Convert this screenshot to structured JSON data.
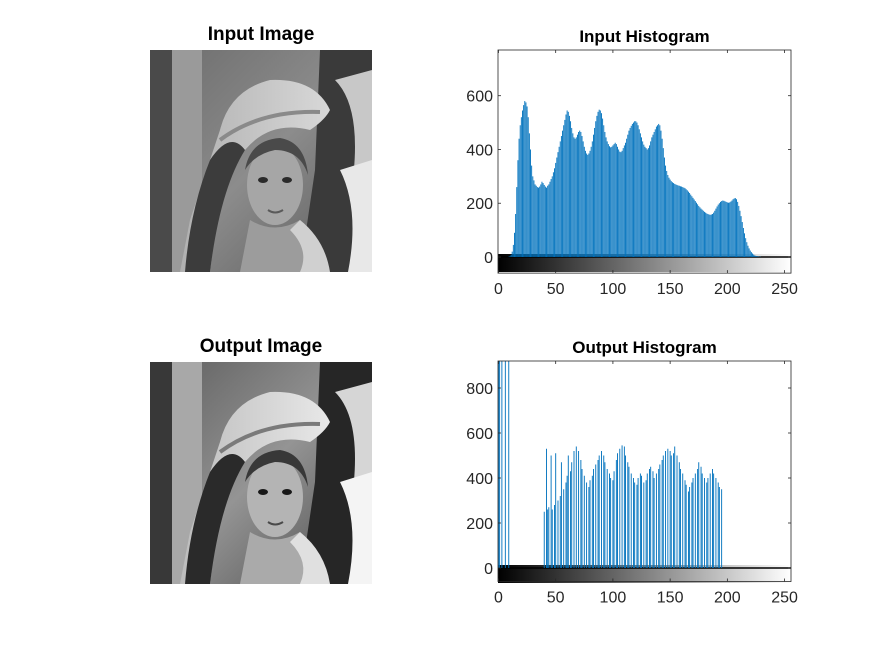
{
  "panels": {
    "input_image_title": "Input Image",
    "output_image_title": "Output Image"
  },
  "chart_data": [
    {
      "type": "bar",
      "title": "Input Histogram",
      "xlabel": "",
      "ylabel": "",
      "xlim": [
        0,
        255
      ],
      "ylim": [
        -60,
        770
      ],
      "xticks": [
        0,
        50,
        100,
        150,
        200,
        250
      ],
      "yticks": [
        0,
        200,
        400,
        600
      ],
      "colorbar": "gray",
      "bar_color": "#0072BD",
      "bins": 256,
      "values": [
        0,
        0,
        0,
        0,
        0,
        0,
        0,
        0,
        0,
        1,
        3,
        8,
        20,
        45,
        90,
        160,
        260,
        360,
        440,
        490,
        520,
        545,
        565,
        580,
        575,
        560,
        520,
        460,
        400,
        340,
        300,
        285,
        270,
        265,
        260,
        258,
        262,
        270,
        280,
        275,
        268,
        262,
        258,
        265,
        270,
        280,
        290,
        300,
        315,
        330,
        350,
        370,
        390,
        410,
        430,
        450,
        470,
        490,
        510,
        530,
        545,
        540,
        525,
        505,
        480,
        460,
        445,
        440,
        445,
        455,
        465,
        470,
        465,
        450,
        430,
        410,
        395,
        385,
        380,
        385,
        395,
        410,
        430,
        455,
        480,
        505,
        525,
        540,
        548,
        545,
        535,
        515,
        490,
        465,
        445,
        430,
        420,
        412,
        408,
        410,
        415,
        420,
        425,
        420,
        410,
        400,
        392,
        390,
        395,
        405,
        415,
        425,
        440,
        455,
        470,
        480,
        488,
        495,
        500,
        505,
        505,
        500,
        490,
        475,
        460,
        445,
        430,
        418,
        410,
        405,
        400,
        405,
        415,
        430,
        445,
        455,
        465,
        475,
        485,
        490,
        495,
        490,
        470,
        440,
        405,
        370,
        340,
        320,
        305,
        295,
        288,
        282,
        278,
        275,
        272,
        270,
        268,
        266,
        265,
        263,
        262,
        260,
        258,
        256,
        252,
        248,
        243,
        238,
        232,
        226,
        220,
        214,
        208,
        202,
        196,
        190,
        185,
        180,
        176,
        172,
        168,
        165,
        162,
        160,
        158,
        157,
        158,
        160,
        165,
        172,
        180,
        188,
        195,
        200,
        205,
        208,
        210,
        209,
        207,
        205,
        203,
        202,
        203,
        206,
        210,
        215,
        218,
        219,
        215,
        205,
        190,
        172,
        152,
        130,
        108,
        88,
        70,
        55,
        42,
        32,
        24,
        18,
        13,
        9,
        6,
        4,
        3,
        2,
        1,
        1,
        0,
        0,
        0,
        0,
        0,
        0,
        0,
        0,
        0,
        0,
        0,
        0,
        0,
        0,
        0,
        0,
        0,
        0,
        0,
        0,
        0,
        0,
        0,
        0,
        0,
        0,
        0,
        0,
        0,
        0,
        0,
        0,
        0,
        0,
        0,
        0
      ]
    },
    {
      "type": "bar",
      "title": "Output Histogram",
      "xlabel": "",
      "ylabel": "",
      "xlim": [
        0,
        255
      ],
      "ylim": [
        -60,
        920
      ],
      "xticks": [
        0,
        50,
        100,
        150,
        200,
        250
      ],
      "yticks": [
        0,
        200,
        400,
        600,
        800
      ],
      "colorbar": "gray",
      "bar_color": "#0072BD",
      "bins": 256,
      "values": [
        1200,
        1200,
        0,
        1200,
        0,
        0,
        1200,
        0,
        0,
        1200,
        0,
        0,
        0,
        0,
        0,
        0,
        0,
        0,
        0,
        0,
        0,
        0,
        0,
        0,
        0,
        0,
        0,
        0,
        0,
        0,
        0,
        0,
        0,
        0,
        0,
        0,
        0,
        0,
        0,
        0,
        250,
        0,
        530,
        260,
        270,
        0,
        500,
        260,
        0,
        280,
        510,
        0,
        300,
        0,
        320,
        470,
        0,
        350,
        0,
        380,
        410,
        500,
        0,
        430,
        470,
        0,
        520,
        0,
        540,
        0,
        520,
        0,
        480,
        440,
        0,
        410,
        0,
        380,
        0,
        360,
        390,
        0,
        410,
        440,
        0,
        460,
        0,
        480,
        500,
        0,
        520,
        0,
        500,
        470,
        0,
        440,
        0,
        420,
        400,
        0,
        390,
        430,
        0,
        480,
        510,
        0,
        530,
        0,
        545,
        0,
        540,
        500,
        0,
        470,
        450,
        0,
        420,
        0,
        400,
        380,
        0,
        370,
        400,
        0,
        420,
        410,
        0,
        380,
        0,
        390,
        420,
        0,
        440,
        450,
        0,
        430,
        400,
        0,
        420,
        0,
        440,
        460,
        0,
        480,
        500,
        0,
        520,
        0,
        530,
        0,
        520,
        500,
        0,
        510,
        540,
        0,
        500,
        0,
        470,
        440,
        0,
        420,
        0,
        390,
        370,
        0,
        340,
        360,
        0,
        380,
        400,
        0,
        420,
        0,
        440,
        470,
        0,
        450,
        420,
        0,
        400,
        0,
        380,
        400,
        0,
        420,
        0,
        440,
        420,
        0,
        400,
        0,
        380,
        360,
        0,
        350,
        0,
        0,
        0,
        0,
        0,
        0,
        0,
        0,
        0,
        0,
        0,
        0,
        0,
        0,
        0,
        0,
        0,
        0,
        0,
        0,
        0,
        0,
        0,
        0,
        0,
        0,
        0,
        0,
        0,
        0,
        0,
        0,
        0,
        0,
        0,
        0,
        0,
        0
      ]
    }
  ]
}
